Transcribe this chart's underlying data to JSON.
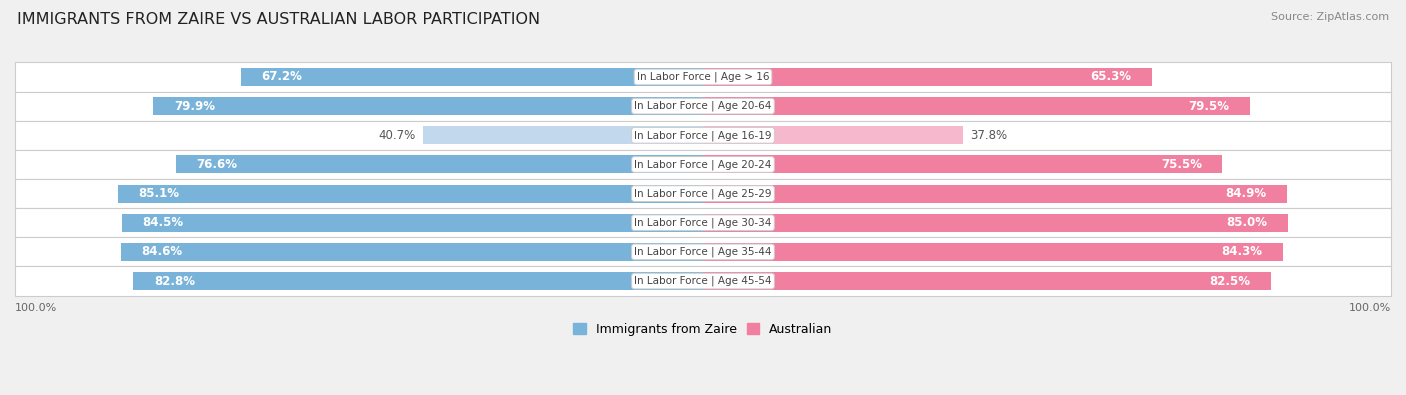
{
  "title": "IMMIGRANTS FROM ZAIRE VS AUSTRALIAN LABOR PARTICIPATION",
  "source": "Source: ZipAtlas.com",
  "categories": [
    "In Labor Force | Age > 16",
    "In Labor Force | Age 20-64",
    "In Labor Force | Age 16-19",
    "In Labor Force | Age 20-24",
    "In Labor Force | Age 25-29",
    "In Labor Force | Age 30-34",
    "In Labor Force | Age 35-44",
    "In Labor Force | Age 45-54"
  ],
  "zaire_values": [
    67.2,
    79.9,
    40.7,
    76.6,
    85.1,
    84.5,
    84.6,
    82.8
  ],
  "australian_values": [
    65.3,
    79.5,
    37.8,
    75.5,
    84.9,
    85.0,
    84.3,
    82.5
  ],
  "zaire_color": "#7ab3d9",
  "zaire_color_light": "#c2d9ed",
  "australian_color": "#f07fa0",
  "australian_color_light": "#f5b8cc",
  "bg_color": "#f0f0f0",
  "row_bg_color": "#ffffff",
  "max_value": 100.0,
  "bar_height": 0.62,
  "label_fontsize": 8.5,
  "title_fontsize": 11.5,
  "legend_fontsize": 9,
  "light_threshold": 50
}
